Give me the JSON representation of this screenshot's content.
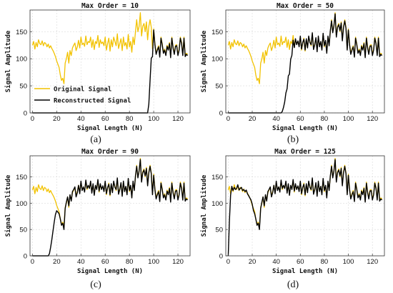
{
  "chart_data": [
    {
      "type": "line",
      "panel_caption": "(a)",
      "title": "Max Order = 10",
      "xlabel": "Signal Length (N)",
      "ylabel": "Signal Amplitude",
      "xlim": [
        -2,
        130
      ],
      "ylim": [
        0,
        190
      ],
      "xticks": [
        0,
        20,
        40,
        60,
        80,
        100,
        120
      ],
      "yticks": [
        0,
        50,
        100,
        150
      ],
      "grid": true,
      "legend": {
        "position": "lower-left",
        "entries": [
          "Original Signal",
          "Reconstructed Signal"
        ]
      },
      "series": [
        {
          "name": "Original Signal",
          "color": "#F2C200",
          "source": "original"
        },
        {
          "name": "Reconstructed Signal",
          "color": "#000000",
          "source": "reconstructed",
          "transition": [
            95,
            100
          ]
        }
      ]
    },
    {
      "type": "line",
      "panel_caption": "(b)",
      "title": "Max Order = 50",
      "xlabel": "Signal Length (N)",
      "ylabel": "Signal Amplitude",
      "xlim": [
        -2,
        130
      ],
      "ylim": [
        0,
        190
      ],
      "xticks": [
        0,
        20,
        40,
        60,
        80,
        100,
        120
      ],
      "yticks": [
        0,
        50,
        100,
        150
      ],
      "grid": true,
      "series": [
        {
          "name": "Original Signal",
          "color": "#F2C200",
          "source": "original"
        },
        {
          "name": "Reconstructed Signal",
          "color": "#000000",
          "source": "reconstructed",
          "transition": [
            44,
            56
          ]
        }
      ]
    },
    {
      "type": "line",
      "panel_caption": "(c)",
      "title": "Max Order = 90",
      "xlabel": "Signal Length (N)",
      "ylabel": "Signal Amplitude",
      "xlim": [
        -2,
        130
      ],
      "ylim": [
        0,
        190
      ],
      "xticks": [
        0,
        20,
        40,
        60,
        80,
        100,
        120
      ],
      "yticks": [
        0,
        50,
        100,
        150
      ],
      "grid": true,
      "series": [
        {
          "name": "Original Signal",
          "color": "#F2C200",
          "source": "original"
        },
        {
          "name": "Reconstructed Signal",
          "color": "#000000",
          "source": "reconstructed",
          "transition": [
            13,
            22
          ]
        }
      ]
    },
    {
      "type": "line",
      "panel_caption": "(d)",
      "title": "Max Order = 125",
      "xlabel": "Signal Length (N)",
      "ylabel": "Signal Amplitude",
      "xlim": [
        -2,
        130
      ],
      "ylim": [
        0,
        190
      ],
      "xticks": [
        0,
        20,
        40,
        60,
        80,
        100,
        120
      ],
      "yticks": [
        0,
        50,
        100,
        150
      ],
      "grid": true,
      "series": [
        {
          "name": "Original Signal",
          "color": "#F2C200",
          "source": "original"
        },
        {
          "name": "Reconstructed Signal",
          "color": "#000000",
          "source": "reconstructed",
          "transition": [
            0,
            2
          ]
        }
      ]
    }
  ],
  "signal": {
    "original": [
      125,
      132,
      118,
      130,
      122,
      135,
      128,
      126,
      133,
      124,
      130,
      128,
      122,
      127,
      120,
      124,
      119,
      115,
      110,
      104,
      96,
      90,
      84,
      70,
      60,
      64,
      54,
      92,
      100,
      112,
      92,
      115,
      106,
      120,
      125,
      129,
      115,
      122,
      134,
      120,
      140,
      126,
      129,
      123,
      142,
      126,
      132,
      130,
      140,
      121,
      135,
      117,
      132,
      128,
      143,
      121,
      135,
      128,
      131,
      124,
      140,
      116,
      128,
      138,
      114,
      135,
      122,
      140,
      132,
      124,
      146,
      119,
      128,
      137,
      115,
      140,
      124,
      130,
      118,
      145,
      122,
      132,
      112,
      140,
      126,
      150,
      172,
      150,
      160,
      185,
      142,
      160,
      165,
      150,
      168,
      135,
      160,
      172,
      158,
      118,
      155,
      128,
      110,
      118,
      124,
      105,
      140,
      128,
      112,
      118,
      108,
      125,
      118,
      130,
      104,
      140,
      122,
      110,
      125,
      126,
      108,
      118,
      140,
      130,
      108,
      140,
      106,
      110,
      108
    ],
    "reconstructed": [
      120,
      128,
      115,
      132,
      124,
      130,
      126,
      128,
      135,
      125,
      128,
      130,
      124,
      126,
      122,
      125,
      118,
      114,
      110,
      106,
      98,
      86,
      80,
      70,
      58,
      62,
      50,
      90,
      102,
      112,
      95,
      116,
      104,
      122,
      126,
      131,
      112,
      120,
      134,
      118,
      142,
      124,
      131,
      121,
      144,
      128,
      134,
      128,
      142,
      119,
      137,
      115,
      134,
      126,
      145,
      123,
      137,
      126,
      133,
      122,
      142,
      118,
      130,
      136,
      116,
      137,
      120,
      142,
      130,
      126,
      148,
      117,
      126,
      139,
      113,
      142,
      122,
      132,
      116,
      147,
      124,
      134,
      110,
      142,
      124,
      152,
      170,
      148,
      162,
      183,
      140,
      158,
      163,
      152,
      166,
      133,
      158,
      170,
      156,
      116,
      153,
      126,
      108,
      116,
      122,
      103,
      138,
      126,
      110,
      116,
      106,
      123,
      116,
      128,
      102,
      138,
      120,
      108,
      123,
      124,
      106,
      116,
      138,
      128,
      106,
      138,
      104,
      108,
      106
    ]
  },
  "colors": {
    "original": "#F2C200",
    "reconstructed": "#000000",
    "grid": "#d9d9d9",
    "frame": "#333333"
  }
}
